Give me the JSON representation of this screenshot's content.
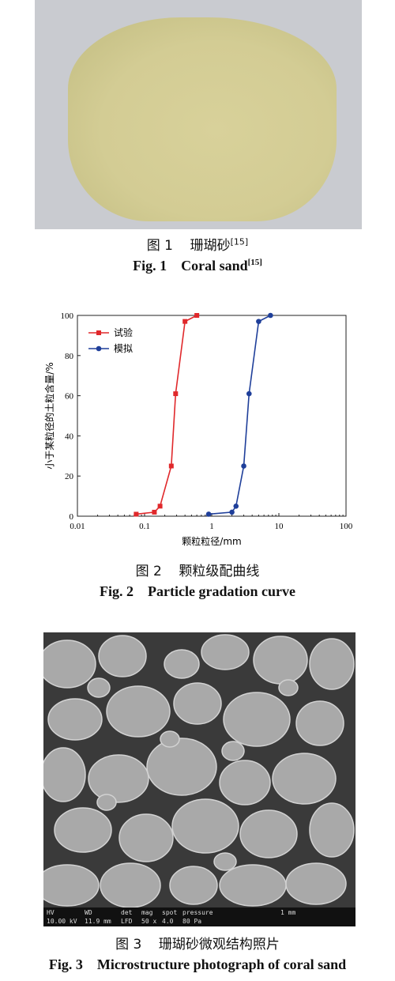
{
  "fig1": {
    "caption_cn_prefix": "图 1",
    "caption_cn_title": "珊瑚砂",
    "caption_cn_ref": "[15]",
    "caption_en_prefix": "Fig. 1",
    "caption_en_title": "Coral sand",
    "caption_en_ref": "[15]"
  },
  "fig2": {
    "caption_cn_prefix": "图 2",
    "caption_cn_title": "颗粒级配曲线",
    "caption_en_prefix": "Fig. 2",
    "caption_en_title": "Particle gradation curve"
  },
  "fig3": {
    "caption_cn_prefix": "图 3",
    "caption_cn_title": "珊瑚砂微观结构照片",
    "caption_en_prefix": "Fig. 3",
    "caption_en_title": "Microstructure photograph of coral sand",
    "sem_labels": [
      "HV",
      "WD",
      "det",
      "mag",
      "spot",
      "pressure",
      "1 mm"
    ],
    "sem_values": [
      "10.00 kV",
      "11.9 mm",
      "LFD",
      "50 x",
      "4.0",
      "80 Pa"
    ]
  },
  "chart_data": {
    "type": "line",
    "xlabel": "颗粒粒径/mm",
    "ylabel": "小于某粒径的土粒含量/%",
    "xscale": "log",
    "xlim": [
      0.01,
      100
    ],
    "ylim": [
      0,
      100
    ],
    "x_ticks": [
      "0.01",
      "0.1",
      "1",
      "10",
      "100"
    ],
    "y_ticks": [
      "0",
      "20",
      "40",
      "60",
      "80",
      "100"
    ],
    "legend_position": "top-left",
    "series": [
      {
        "name": "试验",
        "color": "#e0282b",
        "marker": "square",
        "x": [
          0.075,
          0.14,
          0.17,
          0.25,
          0.29,
          0.4,
          0.6
        ],
        "y": [
          1,
          2,
          5,
          25,
          61,
          97,
          100
        ]
      },
      {
        "name": "模拟",
        "color": "#1f3f9a",
        "marker": "circle",
        "x": [
          0.9,
          2.0,
          2.3,
          3.0,
          3.6,
          5.0,
          7.5
        ],
        "y": [
          1,
          2,
          5,
          25,
          61,
          97,
          100
        ]
      }
    ]
  }
}
